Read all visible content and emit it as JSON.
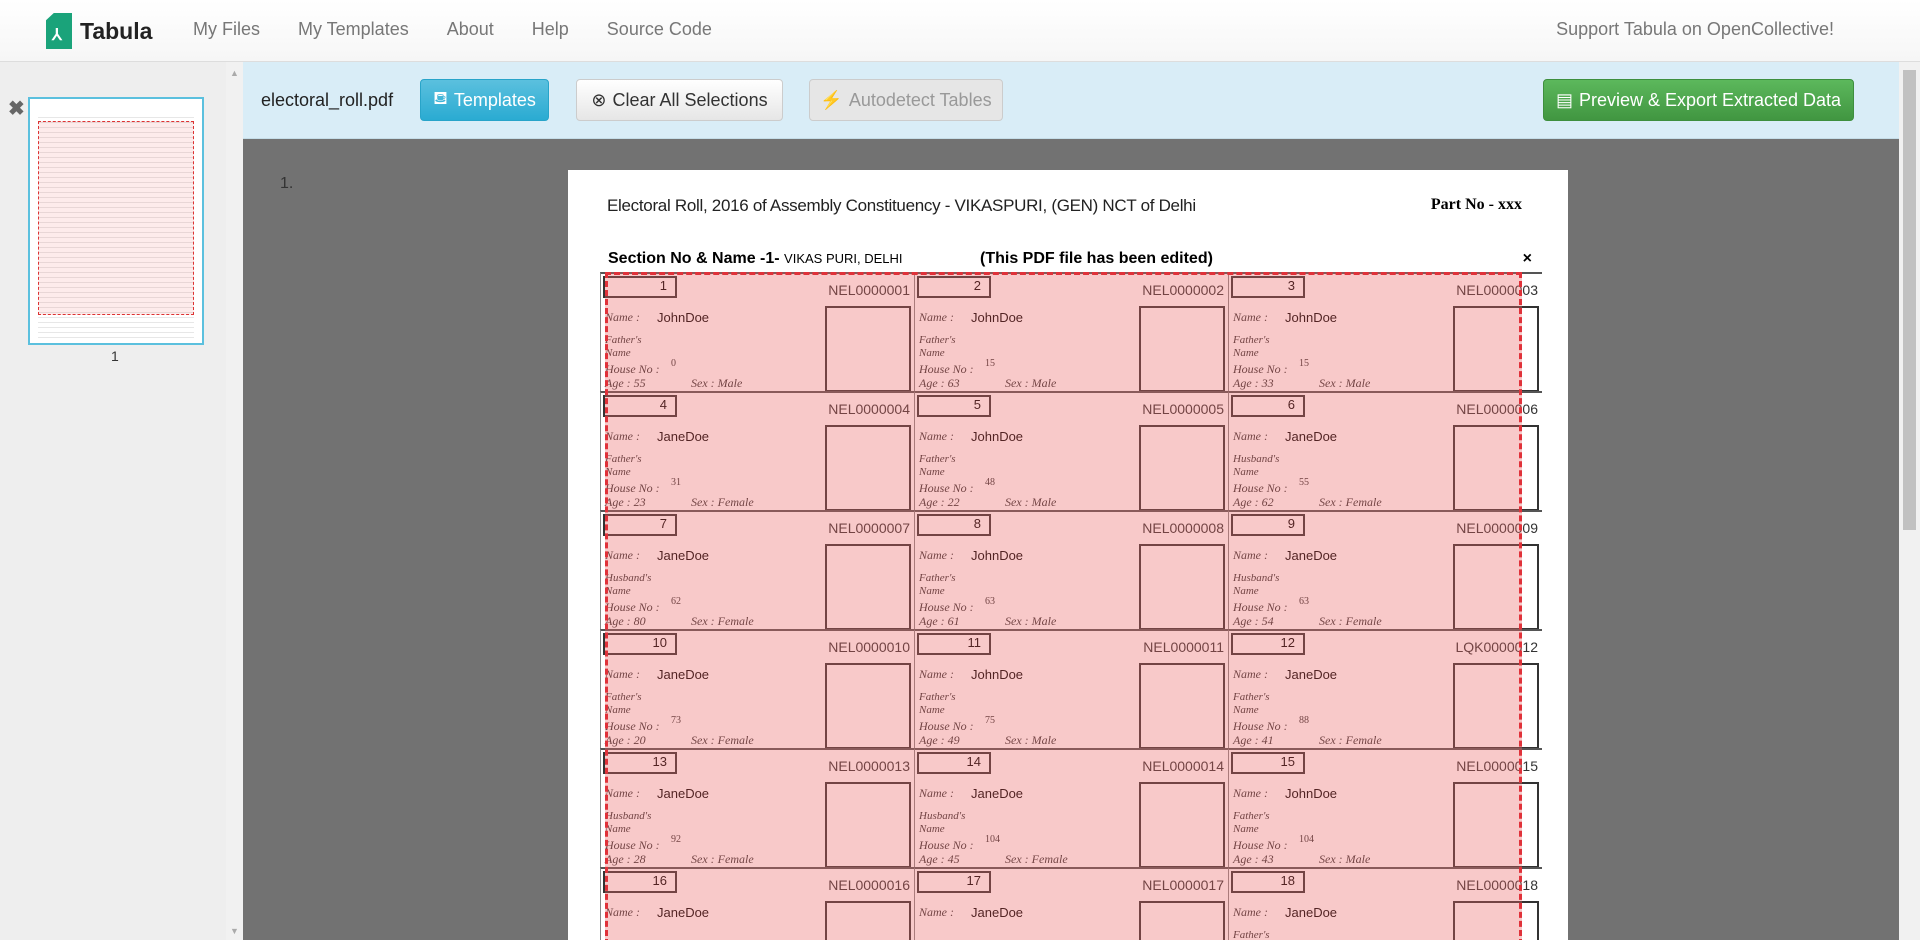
{
  "nav": {
    "brand": "Tabula",
    "links": [
      "My Files",
      "My Templates",
      "About",
      "Help",
      "Source Code"
    ],
    "support": "Support Tabula on OpenCollective!"
  },
  "sidebar": {
    "page_label": "1"
  },
  "toolbar": {
    "filename": "electoral_roll.pdf",
    "templates": "Templates",
    "clear": "Clear All Selections",
    "autodetect": "Autodetect Tables",
    "export": "Preview & Export Extracted Data"
  },
  "colors": {
    "info": "#5bc0de",
    "success": "#5cb85c",
    "selection": "#e0323a",
    "toolbar_bg": "#d9edf7"
  },
  "page": {
    "number": "1.",
    "title": "Electoral Roll, 2016 of Assembly Constituency - VIKASPURI,  (GEN) NCT of Delhi",
    "part": "Part No - xxx",
    "section": "Section No & Name -1-",
    "section_name": "VIKAS PURI, DELHI",
    "edited": "(This PDF file has been edited)",
    "close": "×",
    "labels": {
      "name": "Name :",
      "house": "House No :",
      "age": "Age :",
      "sex": "Sex :",
      "name2": "Name"
    },
    "cards": [
      {
        "no": "1",
        "id": "NEL0000001",
        "name": "JohnDoe",
        "rel": "Father's",
        "house": "0",
        "age": "55",
        "sex": "Male"
      },
      {
        "no": "2",
        "id": "NEL0000002",
        "name": "JohnDoe",
        "rel": "Father's",
        "house": "15",
        "age": "63",
        "sex": "Male"
      },
      {
        "no": "3",
        "id": "NEL0000003",
        "name": "JohnDoe",
        "rel": "Father's",
        "house": "15",
        "age": "33",
        "sex": "Male"
      },
      {
        "no": "4",
        "id": "NEL0000004",
        "name": "JaneDoe",
        "rel": "Father's",
        "house": "31",
        "age": "23",
        "sex": "Female"
      },
      {
        "no": "5",
        "id": "NEL0000005",
        "name": "JohnDoe",
        "rel": "Father's",
        "house": "48",
        "age": "22",
        "sex": "Male"
      },
      {
        "no": "6",
        "id": "NEL0000006",
        "name": "JaneDoe",
        "rel": "Husband's",
        "house": "55",
        "age": "62",
        "sex": "Female"
      },
      {
        "no": "7",
        "id": "NEL0000007",
        "name": "JaneDoe",
        "rel": "Husband's",
        "house": "62",
        "age": "80",
        "sex": "Female"
      },
      {
        "no": "8",
        "id": "NEL0000008",
        "name": "JohnDoe",
        "rel": "Father's",
        "house": "63",
        "age": "61",
        "sex": "Male"
      },
      {
        "no": "9",
        "id": "NEL0000009",
        "name": "JaneDoe",
        "rel": "Husband's",
        "house": "63",
        "age": "54",
        "sex": "Female"
      },
      {
        "no": "10",
        "id": "NEL0000010",
        "name": "JaneDoe",
        "rel": "Father's",
        "house": "73",
        "age": "20",
        "sex": "Female"
      },
      {
        "no": "11",
        "id": "NEL0000011",
        "name": "JohnDoe",
        "rel": "Father's",
        "house": "75",
        "age": "49",
        "sex": "Male"
      },
      {
        "no": "12",
        "id": "LQK0000012",
        "name": "JaneDoe",
        "rel": "Father's",
        "house": "88",
        "age": "41",
        "sex": "Female"
      },
      {
        "no": "13",
        "id": "NEL0000013",
        "name": "JaneDoe",
        "rel": "Husband's",
        "house": "92",
        "age": "28",
        "sex": "Female"
      },
      {
        "no": "14",
        "id": "NEL0000014",
        "name": "JaneDoe",
        "rel": "Husband's",
        "house": "104",
        "age": "45",
        "sex": "Female"
      },
      {
        "no": "15",
        "id": "NEL0000015",
        "name": "JohnDoe",
        "rel": "Father's",
        "house": "104",
        "age": "43",
        "sex": "Male"
      },
      {
        "no": "16",
        "id": "NEL0000016",
        "name": "JaneDoe",
        "rel": "",
        "house": "",
        "age": "",
        "sex": ""
      },
      {
        "no": "17",
        "id": "NEL0000017",
        "name": "JaneDoe",
        "rel": "",
        "house": "",
        "age": "",
        "sex": ""
      },
      {
        "no": "18",
        "id": "NEL0000018",
        "name": "JaneDoe",
        "rel": "Father's",
        "house": "",
        "age": "",
        "sex": ""
      }
    ]
  }
}
